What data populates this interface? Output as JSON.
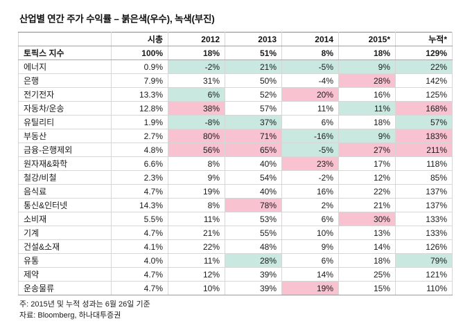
{
  "title": "산업별 연간 주가 수익률 – 붉은색(우수), 녹색(부진)",
  "chart_data": {
    "type": "table",
    "corner_label": "",
    "columns": [
      "시총",
      "2012",
      "2013",
      "2014",
      "2015*",
      "누적*"
    ],
    "topix": {
      "label": "토픽스 지수",
      "values": [
        "100%",
        "18%",
        "51%",
        "8%",
        "18%",
        "129%"
      ]
    },
    "rows": [
      {
        "label": "에너지",
        "values": [
          "0.9%",
          "-2%",
          "21%",
          "-5%",
          "9%",
          "22%"
        ],
        "highlights": [
          "",
          "g",
          "g",
          "g",
          "g",
          "g"
        ]
      },
      {
        "label": "은행",
        "values": [
          "7.9%",
          "31%",
          "50%",
          "-4%",
          "28%",
          "142%"
        ],
        "highlights": [
          "",
          "",
          "",
          "",
          "p",
          ""
        ]
      },
      {
        "label": "전기전자",
        "values": [
          "13.3%",
          "6%",
          "52%",
          "20%",
          "16%",
          "125%"
        ],
        "highlights": [
          "",
          "g",
          "",
          "p",
          "",
          ""
        ]
      },
      {
        "label": "자동차/운송",
        "values": [
          "12.8%",
          "38%",
          "57%",
          "11%",
          "11%",
          "168%"
        ],
        "highlights": [
          "",
          "p",
          "",
          "",
          "g",
          "p"
        ]
      },
      {
        "label": "유틸리티",
        "values": [
          "1.9%",
          "-8%",
          "37%",
          "6%",
          "18%",
          "57%"
        ],
        "highlights": [
          "",
          "g",
          "g",
          "",
          "",
          "g"
        ]
      },
      {
        "label": "부동산",
        "values": [
          "2.7%",
          "80%",
          "71%",
          "-16%",
          "9%",
          "183%"
        ],
        "highlights": [
          "",
          "p",
          "p",
          "g",
          "g",
          "p"
        ]
      },
      {
        "label": "금융-은행제외",
        "values": [
          "4.8%",
          "56%",
          "65%",
          "-5%",
          "27%",
          "211%"
        ],
        "highlights": [
          "",
          "p",
          "p",
          "g",
          "p",
          "p"
        ]
      },
      {
        "label": "원자재&화학",
        "values": [
          "6.6%",
          "8%",
          "40%",
          "23%",
          "17%",
          "118%"
        ],
        "highlights": [
          "",
          "",
          "",
          "p",
          "",
          ""
        ]
      },
      {
        "label": "철강/비철",
        "values": [
          "2.3%",
          "9%",
          "54%",
          "-2%",
          "12%",
          "85%"
        ],
        "highlights": [
          "",
          "",
          "",
          "",
          "",
          ""
        ]
      },
      {
        "label": "음식료",
        "values": [
          "4.7%",
          "19%",
          "40%",
          "16%",
          "22%",
          "137%"
        ],
        "highlights": [
          "",
          "",
          "",
          "",
          "",
          ""
        ]
      },
      {
        "label": "통신&인터넷",
        "values": [
          "14.3%",
          "8%",
          "78%",
          "2%",
          "21%",
          "137%"
        ],
        "highlights": [
          "",
          "",
          "p",
          "",
          "",
          ""
        ]
      },
      {
        "label": "소비재",
        "values": [
          "5.5%",
          "11%",
          "53%",
          "6%",
          "30%",
          "133%"
        ],
        "highlights": [
          "",
          "",
          "",
          "",
          "p",
          ""
        ]
      },
      {
        "label": "기계",
        "values": [
          "4.7%",
          "21%",
          "55%",
          "10%",
          "13%",
          "133%"
        ],
        "highlights": [
          "",
          "",
          "",
          "",
          "",
          ""
        ]
      },
      {
        "label": "건설&소재",
        "values": [
          "4.1%",
          "22%",
          "48%",
          "9%",
          "14%",
          "126%"
        ],
        "highlights": [
          "",
          "",
          "",
          "",
          "",
          ""
        ]
      },
      {
        "label": "유통",
        "values": [
          "4.0%",
          "11%",
          "28%",
          "6%",
          "18%",
          "79%"
        ],
        "highlights": [
          "",
          "",
          "g",
          "",
          "",
          "g"
        ]
      },
      {
        "label": "제약",
        "values": [
          "4.7%",
          "12%",
          "39%",
          "14%",
          "25%",
          "121%"
        ],
        "highlights": [
          "",
          "",
          "",
          "",
          "",
          ""
        ]
      },
      {
        "label": "운송물류",
        "values": [
          "4.7%",
          "10%",
          "39%",
          "19%",
          "15%",
          "110%"
        ],
        "highlights": [
          "",
          "",
          "",
          "p",
          "",
          ""
        ]
      }
    ],
    "highlight_colors": {
      "p": "#f8c2d0",
      "g": "#c9e8e0"
    },
    "highlight_meaning": {
      "p": "우수(붉은색)",
      "g": "부진(녹색)"
    }
  },
  "notes": {
    "note1": "주: 2015년 및 누적 성과는 6월 26일 기준",
    "note2": "자료: Bloomberg, 하나대투증권"
  }
}
